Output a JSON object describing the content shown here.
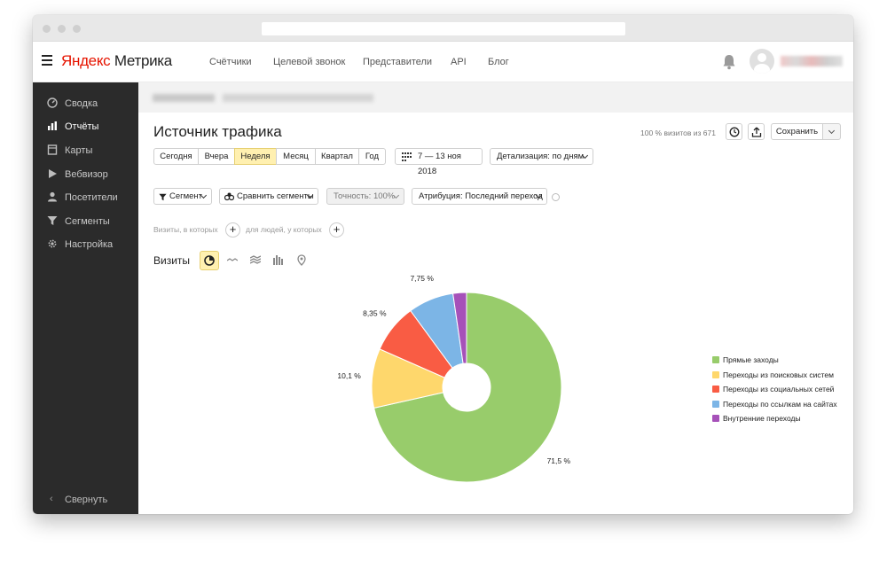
{
  "app": {
    "logo_brand": "Яндекс",
    "logo_product": "Метрика"
  },
  "topnav": [
    {
      "label": "Счётчики"
    },
    {
      "label": "Целевой звонок"
    },
    {
      "label": "Представители"
    },
    {
      "label": "API"
    },
    {
      "label": "Блог"
    }
  ],
  "sidebar": {
    "items": [
      {
        "label": "Сводка",
        "icon": "gauge-icon"
      },
      {
        "label": "Отчёты",
        "icon": "bar-chart-icon",
        "active": true
      },
      {
        "label": "Карты",
        "icon": "map-icon"
      },
      {
        "label": "Вебвизор",
        "icon": "play-icon"
      },
      {
        "label": "Посетители",
        "icon": "user-icon"
      },
      {
        "label": "Сегменты",
        "icon": "filter-icon"
      },
      {
        "label": "Настройка",
        "icon": "gear-icon"
      }
    ],
    "collapse_label": "Свернуть"
  },
  "report": {
    "title": "Источник трафика",
    "visits_info": "100 % визитов из 671",
    "save_label": "Сохранить",
    "periods": [
      "Сегодня",
      "Вчера",
      "Неделя",
      "Месяц",
      "Квартал",
      "Год"
    ],
    "selected_period": "Неделя",
    "date_range": "7 — 13 ноя 2018",
    "detail": "Детализация: по дням",
    "segment": "Сегмент",
    "compare": "Сравнить сегменты",
    "accuracy": "Точность: 100%",
    "attribution": "Атрибуция: Последний переход",
    "visits_filter": "Визиты, в которых",
    "people_filter": "для людей, у которых",
    "plus": "+",
    "chart_section": "Визиты"
  },
  "colors": {
    "accent_selected": "#fff0b0",
    "sidebar_bg": "#2b2b2b"
  },
  "chart_data": {
    "type": "pie",
    "donut": true,
    "legend_position": "right",
    "series": [
      {
        "name": "Прямые заходы",
        "value": 71.5,
        "label": "71,5 %",
        "color": "#98cc6b"
      },
      {
        "name": "Переходы из поисковых систем",
        "value": 10.1,
        "label": "10,1 %",
        "color": "#fed76c"
      },
      {
        "name": "Переходы из социальных сетей",
        "value": 8.35,
        "label": "8,35 %",
        "color": "#f95c44"
      },
      {
        "name": "Переходы по ссылкам на сайтах",
        "value": 7.75,
        "label": "7,75 %",
        "color": "#7cb5e6"
      },
      {
        "name": "Внутренние переходы",
        "value": 2.3,
        "label": "",
        "color": "#a651b9"
      }
    ]
  }
}
